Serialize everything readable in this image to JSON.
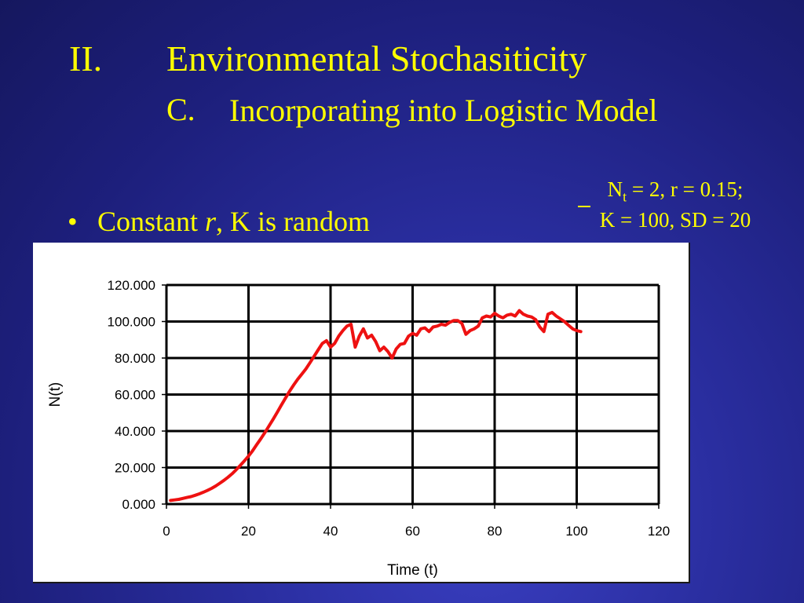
{
  "slide": {
    "section_number": "II.",
    "title": "Environmental Stochasiticity",
    "subsection_letter": "C.",
    "subsection_title": "Incorporating into Logistic Model",
    "params_line1_pre": "N",
    "params_line1_sub": "t",
    "params_line1_post": " = 2, r = 0.15;",
    "params_line2": "K = 100, SD = 20",
    "bullet_symbol": "•",
    "bullet_text_pre": "Constant ",
    "bullet_text_italic": "r",
    "bullet_text_post": ", K is random"
  },
  "colors": {
    "background": "#1d1f7c",
    "text": "#ffff00",
    "series_line": "#ee1111",
    "grid": "#000000"
  },
  "chart_data": {
    "type": "line",
    "title": "",
    "xlabel": "Time (t)",
    "ylabel": "N(t)",
    "xlim": [
      0,
      120
    ],
    "ylim": [
      0,
      120
    ],
    "x_ticks": [
      0,
      20,
      40,
      60,
      80,
      100,
      120
    ],
    "y_ticks": [
      0,
      20,
      40,
      60,
      80,
      100,
      120
    ],
    "x_tick_labels": [
      "0",
      "20",
      "40",
      "60",
      "80",
      "100",
      "120"
    ],
    "y_tick_labels": [
      "0.000",
      "20.000",
      "40.000",
      "60.000",
      "80.000",
      "100.000",
      "120.000"
    ],
    "grid": true,
    "legend": "none",
    "series": [
      {
        "x": [
          1,
          2,
          3,
          4,
          5,
          6,
          7,
          8,
          9,
          10,
          11,
          12,
          13,
          14,
          15,
          16,
          17,
          18,
          19,
          20,
          21,
          22,
          23,
          24,
          25,
          26,
          27,
          28,
          29,
          30,
          31,
          32,
          33,
          34,
          35,
          36,
          37,
          38,
          39,
          40,
          41,
          42,
          43,
          44,
          45,
          46,
          47,
          48,
          49,
          50,
          51,
          52,
          53,
          54,
          55,
          56,
          57,
          58,
          59,
          60,
          61,
          62,
          63,
          64,
          65,
          66,
          67,
          68,
          69,
          70,
          71,
          72,
          73,
          74,
          75,
          76,
          77,
          78,
          79,
          80,
          81,
          82,
          83,
          84,
          85,
          86,
          87,
          88,
          89,
          90,
          91,
          92,
          93,
          94,
          95,
          96,
          97,
          98,
          99,
          100,
          101
        ],
        "y": [
          2,
          2.3,
          2.6,
          3.1,
          3.6,
          4.1,
          4.8,
          5.6,
          6.5,
          7.5,
          8.6,
          9.9,
          11.4,
          13.0,
          14.7,
          16.6,
          18.8,
          21.2,
          23.7,
          26.3,
          29.2,
          32.5,
          35.8,
          39.2,
          42.8,
          46.5,
          50.3,
          54.2,
          58.0,
          61.8,
          65.2,
          68.4,
          71.2,
          74.0,
          77.5,
          81.0,
          84.5,
          88.0,
          89.5,
          86.0,
          88.0,
          92.0,
          95.0,
          97.5,
          98.5,
          86.0,
          92.0,
          96.0,
          91.0,
          92.5,
          89.0,
          84.0,
          86.0,
          83.5,
          80.0,
          85.0,
          87.5,
          88.0,
          92.0,
          93.5,
          92.5,
          96.0,
          96.5,
          94.5,
          97.0,
          97.5,
          98.5,
          98.0,
          99.5,
          100.5,
          100.5,
          99.0,
          93.0,
          95.0,
          96.0,
          97.5,
          102.0,
          103.0,
          102.5,
          104.5,
          103.0,
          102.0,
          103.5,
          104.0,
          103.0,
          106.0,
          104.0,
          103.0,
          102.5,
          101.0,
          97.0,
          94.5,
          104.0,
          105.0,
          103.0,
          101.5,
          100.0,
          98.0,
          96.0,
          95.0,
          94.5
        ]
      }
    ]
  }
}
